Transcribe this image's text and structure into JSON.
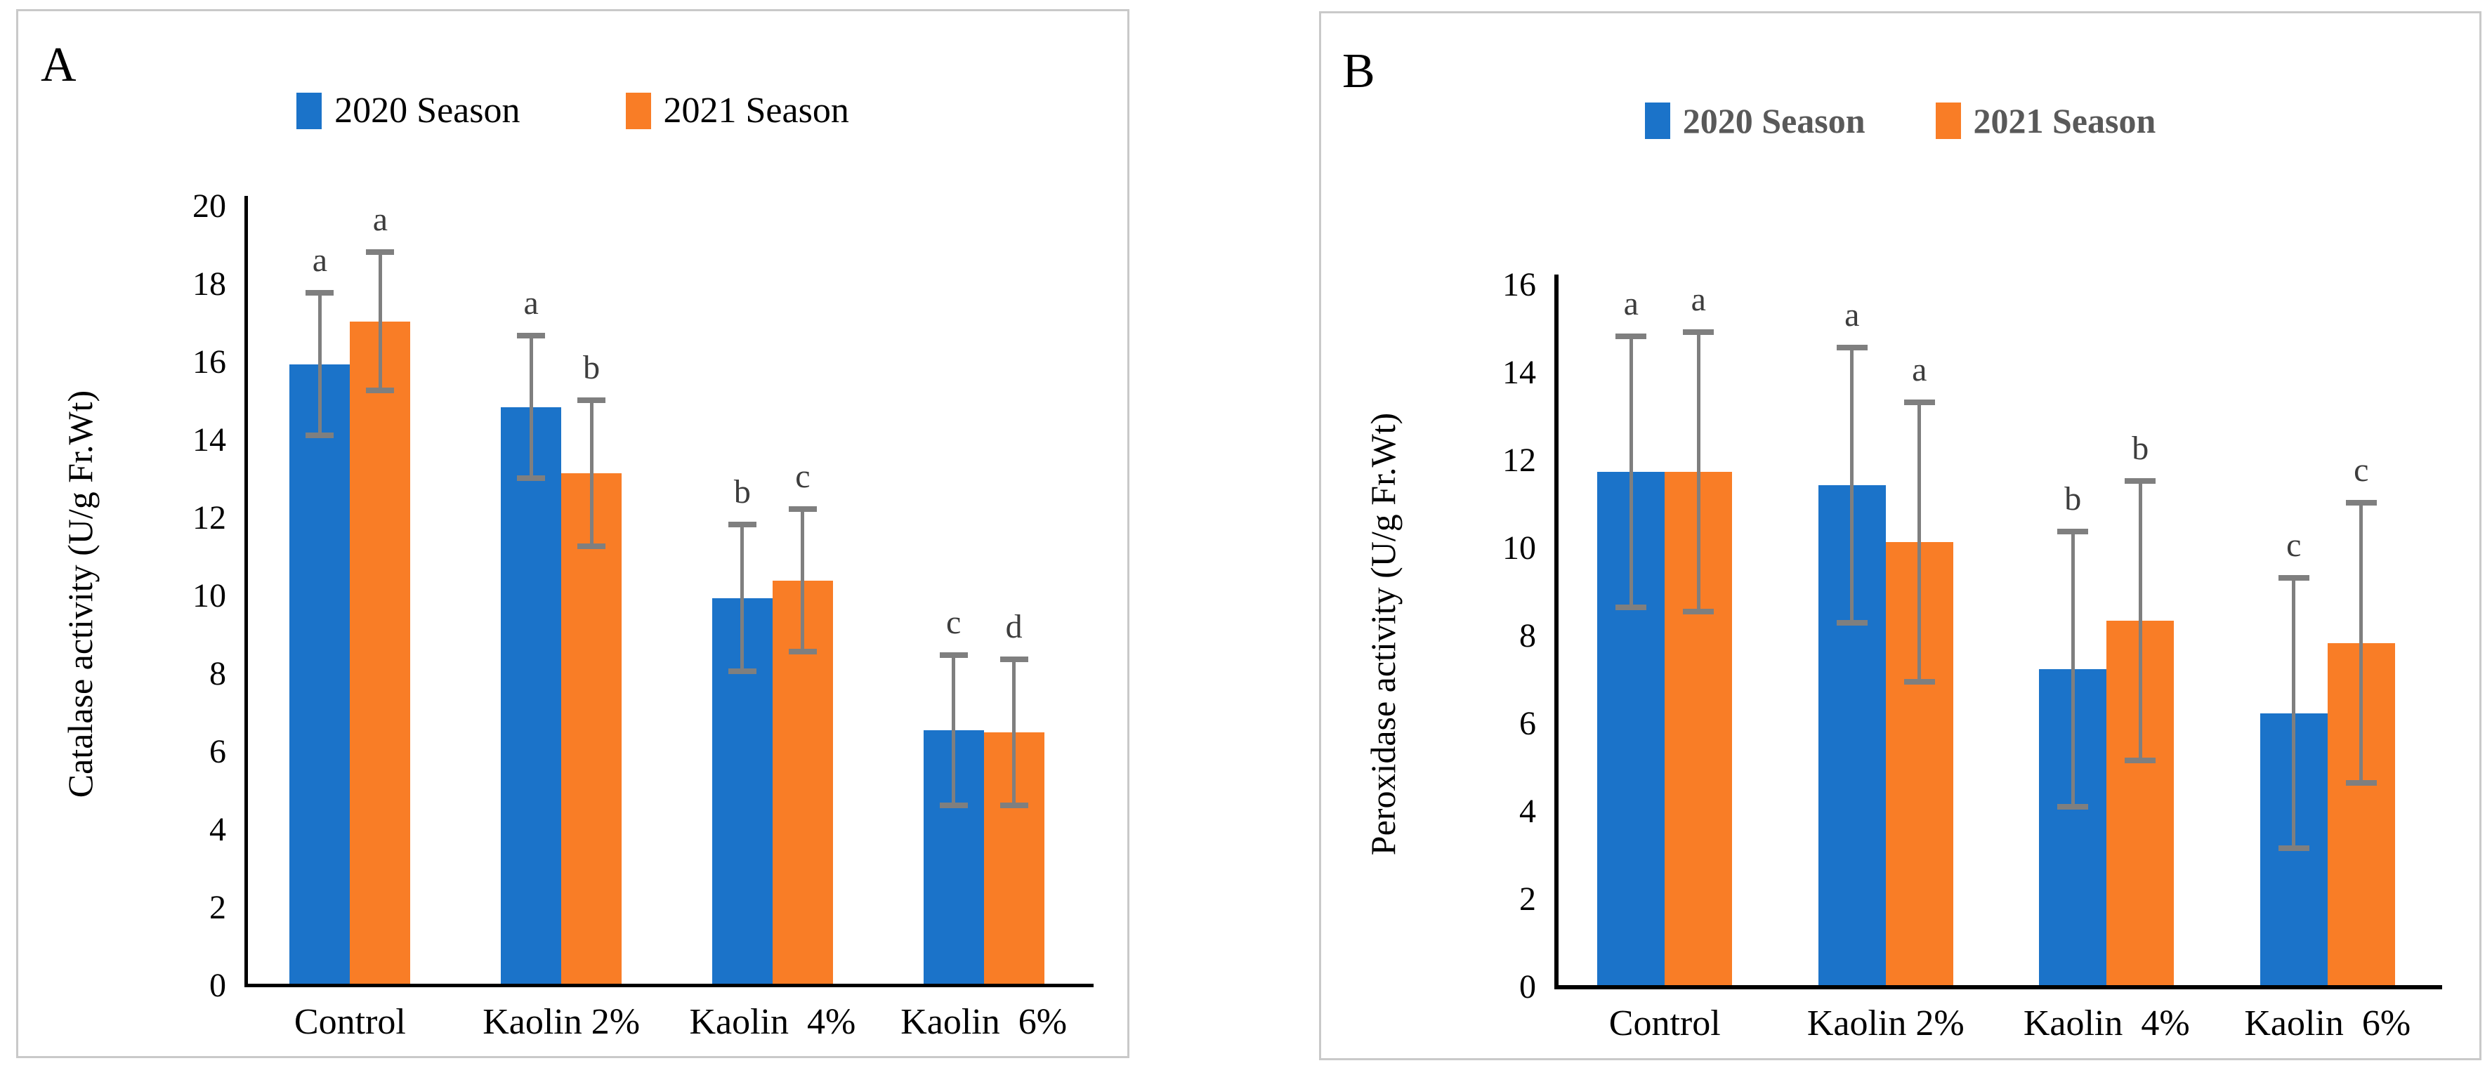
{
  "figure": {
    "description": "Two-panel grouped bar figure comparing kaolin treatments across two seasons"
  },
  "chart_data": [
    {
      "type": "bar",
      "panel_label": "A",
      "ylabel": "Catalase activity (U/g Fr.Wt)",
      "xlabel": "",
      "ylim": [
        0,
        20
      ],
      "y_ticks": [
        0,
        2,
        4,
        6,
        8,
        10,
        12,
        14,
        16,
        18,
        20
      ],
      "grid": "off",
      "legend_position": "top",
      "error_bar_color": "#7f7f7f",
      "categories": [
        "Control",
        "Kaolin 2%",
        "Kaolin  4%",
        "Kaolin  6%"
      ],
      "series": [
        {
          "name": "2020 Season",
          "color": "#1b73c9",
          "values": [
            15.9,
            14.8,
            9.9,
            6.5
          ],
          "errors": [
            1.9,
            1.9,
            1.95,
            2.0
          ],
          "sig_letters": [
            "a",
            "a",
            "b",
            "c"
          ]
        },
        {
          "name": "2021 Season",
          "color": "#f97d26",
          "values": [
            17.0,
            13.1,
            10.35,
            6.45
          ],
          "errors": [
            1.85,
            1.95,
            1.9,
            1.95
          ],
          "sig_letters": [
            "a",
            "b",
            "c",
            "d"
          ]
        }
      ]
    },
    {
      "type": "bar",
      "panel_label": "B",
      "ylabel": "Peroxidase activity (U/g Fr.Wt)",
      "xlabel": "",
      "ylim": [
        0,
        16
      ],
      "y_ticks": [
        0,
        2,
        4,
        6,
        8,
        10,
        12,
        14,
        16
      ],
      "grid": "off",
      "legend_position": "top",
      "error_bar_color": "#7f7f7f",
      "categories": [
        "Control",
        "Kaolin 2%",
        "Kaolin  4%",
        "Kaolin  6%"
      ],
      "series": [
        {
          "name": "2020 Season",
          "color": "#1b73c9",
          "values": [
            11.7,
            11.4,
            7.2,
            6.2
          ],
          "errors": [
            3.15,
            3.2,
            3.2,
            3.15
          ],
          "sig_letters": [
            "a",
            "a",
            "b",
            "c"
          ]
        },
        {
          "name": "2021 Season",
          "color": "#f97d26",
          "values": [
            11.7,
            10.1,
            8.3,
            7.8
          ],
          "errors": [
            3.25,
            3.25,
            3.25,
            3.25
          ],
          "sig_letters": [
            "a",
            "a",
            "b",
            "c"
          ]
        }
      ]
    }
  ]
}
